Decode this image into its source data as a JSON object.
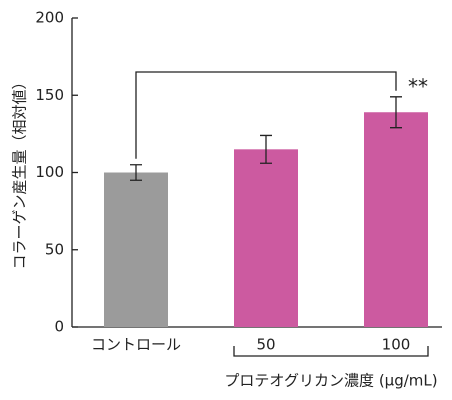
{
  "chart_data": {
    "type": "bar",
    "y_label": "コラーゲン産生量（相対値）",
    "x_group_label": "プロテオグリカン濃度 (μg/mL)",
    "categories": [
      "コントロール",
      "50",
      "100"
    ],
    "values": [
      100,
      115,
      139
    ],
    "errors": [
      5,
      9,
      10
    ],
    "colors": [
      "#9b9b9b",
      "#cc5aa0",
      "#cc5aa0"
    ],
    "significance": "**",
    "ylim": [
      0,
      200
    ],
    "yticks": [
      0,
      50,
      100,
      150,
      200
    ],
    "grid": false
  }
}
